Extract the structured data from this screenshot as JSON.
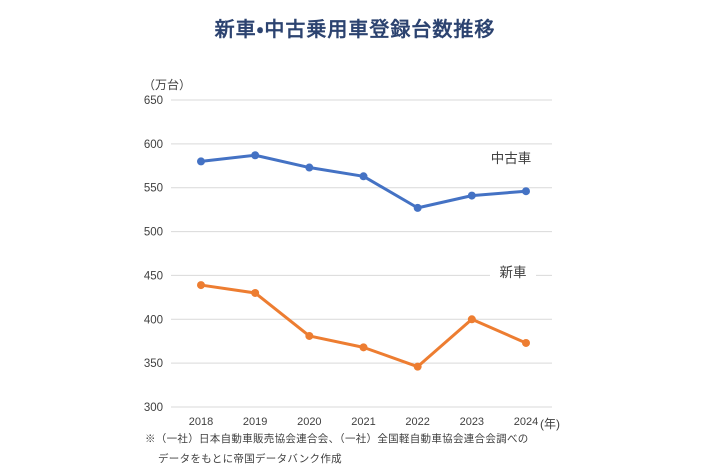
{
  "title": "新車・中古乗用車登録台数推移",
  "chart_data": {
    "type": "line",
    "title": "新車・中古乗用車登録台数推移",
    "unit_label": "（万台）",
    "x_unit_label": "(年)",
    "categories": [
      "2018",
      "2019",
      "2020",
      "2021",
      "2022",
      "2023",
      "2024"
    ],
    "series": [
      {
        "name": "中古車",
        "color": "#4472C4",
        "values": [
          580,
          587,
          573,
          563,
          527,
          541,
          546
        ]
      },
      {
        "name": "新車",
        "color": "#ED7D31",
        "values": [
          439,
          430,
          381,
          368,
          346,
          400,
          373
        ]
      }
    ],
    "ylim": [
      300,
      650
    ],
    "ytick_step": 50,
    "yticks": [
      300,
      350,
      400,
      450,
      500,
      550,
      600,
      650
    ],
    "grid": true,
    "legend_position": "inline-labels-right"
  },
  "footer": {
    "line1": "※（一社）日本自動車販売協会連合会、（一社）全国軽自動車協会連合会調べの",
    "line2": "データをもとに帝国データバンク作成"
  },
  "colors": {
    "title_text": "#2c4370",
    "used_car_line": "#4472C4",
    "new_car_line": "#ED7D31",
    "gridline": "#d9d9d9",
    "tick_text": "#404040",
    "series_label_text": "#404040",
    "background": "#ffffff"
  }
}
